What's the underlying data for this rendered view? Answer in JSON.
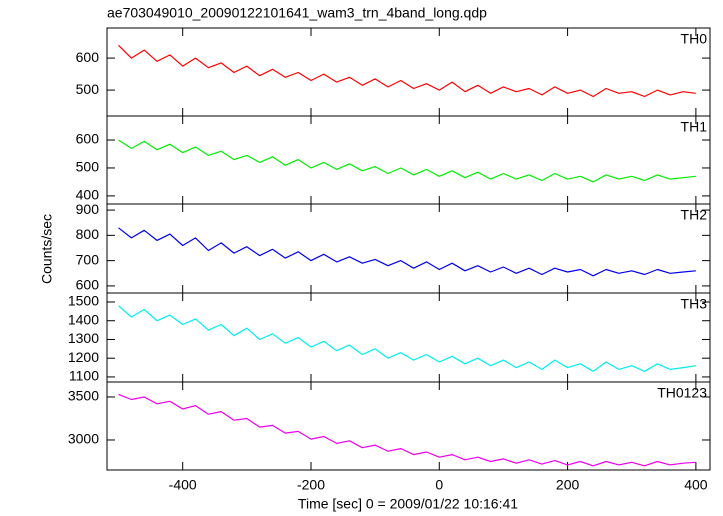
{
  "chart_data": [
    {
      "type": "line",
      "title": "ae703049010_20090122101641_wam3_trn_4band_long.qdp",
      "x": [
        -500,
        -480,
        -460,
        -440,
        -420,
        -400,
        -380,
        -360,
        -340,
        -320,
        -300,
        -280,
        -260,
        -240,
        -220,
        -200,
        -180,
        -160,
        -140,
        -120,
        -100,
        -80,
        -60,
        -40,
        -20,
        0,
        20,
        40,
        60,
        80,
        100,
        120,
        140,
        160,
        180,
        200,
        220,
        240,
        260,
        280,
        300,
        320,
        340,
        360,
        380,
        400
      ],
      "series": [
        {
          "name": "TH0",
          "color": "#ff0000",
          "values": [
            640,
            600,
            625,
            590,
            610,
            575,
            600,
            570,
            585,
            555,
            575,
            545,
            565,
            540,
            555,
            530,
            550,
            525,
            540,
            515,
            535,
            510,
            530,
            505,
            520,
            500,
            525,
            495,
            515,
            490,
            510,
            495,
            505,
            485,
            510,
            490,
            500,
            480,
            505,
            490,
            495,
            480,
            500,
            485,
            495,
            490
          ]
        }
      ],
      "xlim": [
        -518,
        422
      ],
      "xticks": [
        -400,
        -200,
        0,
        200,
        400
      ],
      "ylim": [
        419,
        694
      ],
      "yticks": [
        500,
        600
      ]
    },
    {
      "type": "line",
      "x": [
        -500,
        -480,
        -460,
        -440,
        -420,
        -400,
        -380,
        -360,
        -340,
        -320,
        -300,
        -280,
        -260,
        -240,
        -220,
        -200,
        -180,
        -160,
        -140,
        -120,
        -100,
        -80,
        -60,
        -40,
        -20,
        0,
        20,
        40,
        60,
        80,
        100,
        120,
        140,
        160,
        180,
        200,
        220,
        240,
        260,
        280,
        300,
        320,
        340,
        360,
        380,
        400
      ],
      "series": [
        {
          "name": "TH1",
          "color": "#00ee00",
          "values": [
            600,
            570,
            595,
            565,
            585,
            555,
            575,
            545,
            560,
            530,
            545,
            520,
            540,
            510,
            530,
            500,
            520,
            495,
            515,
            490,
            505,
            480,
            500,
            475,
            495,
            470,
            490,
            465,
            485,
            460,
            480,
            460,
            475,
            455,
            480,
            460,
            470,
            450,
            475,
            460,
            470,
            455,
            475,
            460,
            465,
            470
          ]
        }
      ],
      "xlim": [
        -518,
        422
      ],
      "xticks": [
        -400,
        -200,
        0,
        200,
        400
      ],
      "ylim": [
        371,
        686
      ],
      "yticks": [
        400,
        500,
        600
      ]
    },
    {
      "type": "line",
      "ylabel": "Counts/sec",
      "x": [
        -500,
        -480,
        -460,
        -440,
        -420,
        -400,
        -380,
        -360,
        -340,
        -320,
        -300,
        -280,
        -260,
        -240,
        -220,
        -200,
        -180,
        -160,
        -140,
        -120,
        -100,
        -80,
        -60,
        -40,
        -20,
        0,
        20,
        40,
        60,
        80,
        100,
        120,
        140,
        160,
        180,
        200,
        220,
        240,
        260,
        280,
        300,
        320,
        340,
        360,
        380,
        400
      ],
      "series": [
        {
          "name": "TH2",
          "color": "#0000ee",
          "values": [
            830,
            790,
            820,
            780,
            805,
            760,
            790,
            740,
            770,
            730,
            755,
            720,
            745,
            710,
            735,
            700,
            725,
            695,
            715,
            690,
            705,
            680,
            700,
            670,
            695,
            665,
            690,
            660,
            680,
            655,
            675,
            650,
            670,
            645,
            670,
            655,
            665,
            640,
            665,
            650,
            660,
            645,
            665,
            650,
            655,
            660
          ]
        }
      ],
      "xlim": [
        -518,
        422
      ],
      "xticks": [
        -400,
        -200,
        0,
        200,
        400
      ],
      "ylim": [
        572,
        924
      ],
      "yticks": [
        600,
        700,
        800,
        900
      ]
    },
    {
      "type": "line",
      "x": [
        -500,
        -480,
        -460,
        -440,
        -420,
        -400,
        -380,
        -360,
        -340,
        -320,
        -300,
        -280,
        -260,
        -240,
        -220,
        -200,
        -180,
        -160,
        -140,
        -120,
        -100,
        -80,
        -60,
        -40,
        -20,
        0,
        20,
        40,
        60,
        80,
        100,
        120,
        140,
        160,
        180,
        200,
        220,
        240,
        260,
        280,
        300,
        320,
        340,
        360,
        380,
        400
      ],
      "series": [
        {
          "name": "TH3",
          "color": "#00eeee",
          "values": [
            1480,
            1420,
            1460,
            1400,
            1430,
            1380,
            1410,
            1350,
            1380,
            1320,
            1360,
            1300,
            1330,
            1280,
            1310,
            1260,
            1290,
            1240,
            1270,
            1220,
            1250,
            1200,
            1230,
            1190,
            1220,
            1180,
            1210,
            1170,
            1200,
            1160,
            1190,
            1150,
            1180,
            1140,
            1190,
            1150,
            1170,
            1130,
            1180,
            1140,
            1160,
            1130,
            1170,
            1140,
            1150,
            1160
          ]
        }
      ],
      "xlim": [
        -518,
        422
      ],
      "xticks": [
        -400,
        -200,
        0,
        200,
        400
      ],
      "ylim": [
        1073,
        1548
      ],
      "yticks": [
        1100,
        1200,
        1300,
        1400,
        1500
      ]
    },
    {
      "type": "line",
      "xlabel": "Time [sec] 0 = 2009/01/22 10:16:41",
      "x": [
        -500,
        -480,
        -460,
        -440,
        -420,
        -400,
        -380,
        -360,
        -340,
        -320,
        -300,
        -280,
        -260,
        -240,
        -220,
        -200,
        -180,
        -160,
        -140,
        -120,
        -100,
        -80,
        -60,
        -40,
        -20,
        0,
        20,
        40,
        60,
        80,
        100,
        120,
        140,
        160,
        180,
        200,
        220,
        240,
        260,
        280,
        300,
        320,
        340,
        360,
        380,
        400
      ],
      "series": [
        {
          "name": "TH0123",
          "color": "#ee00ee",
          "values": [
            3530,
            3470,
            3500,
            3420,
            3450,
            3360,
            3400,
            3300,
            3330,
            3230,
            3250,
            3150,
            3170,
            3080,
            3100,
            3010,
            3040,
            2960,
            2990,
            2910,
            2940,
            2870,
            2900,
            2830,
            2860,
            2800,
            2830,
            2770,
            2800,
            2750,
            2780,
            2730,
            2770,
            2720,
            2760,
            2710,
            2750,
            2700,
            2750,
            2710,
            2740,
            2700,
            2750,
            2710,
            2730,
            2740
          ]
        }
      ],
      "xlim": [
        -518,
        422
      ],
      "xticks": [
        -400,
        -200,
        0,
        200,
        400
      ],
      "ylim": [
        2651,
        3674
      ],
      "yticks": [
        3000,
        3500
      ]
    }
  ]
}
